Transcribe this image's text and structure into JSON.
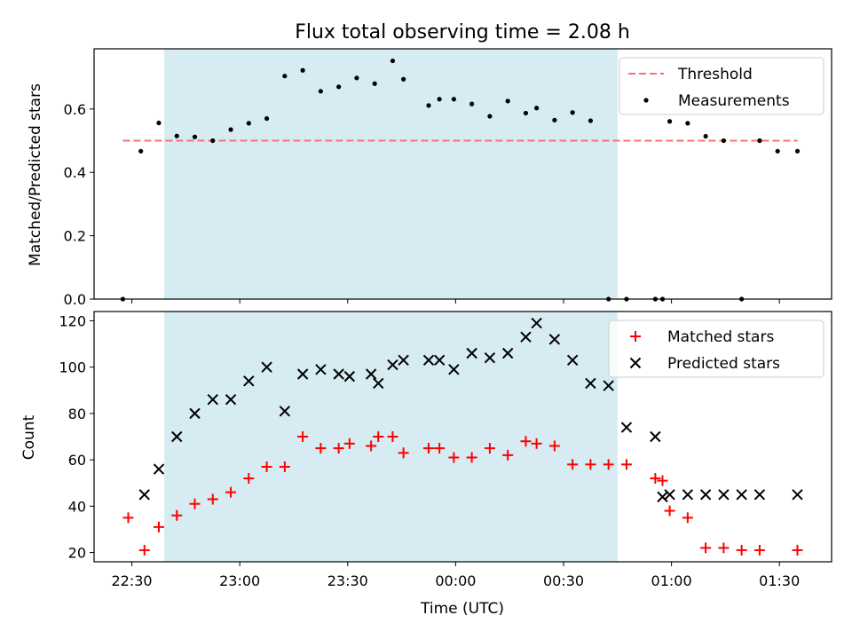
{
  "chart_data": {
    "type": "scatter",
    "title": "Flux total observing time = 2.08 h",
    "xlabel": "Time (UTC)",
    "x_tick_labels": [
      "22:30",
      "23:00",
      "23:30",
      "00:00",
      "00:30",
      "01:00",
      "01:30"
    ],
    "x_tick_minutes": [
      0,
      30,
      60,
      90,
      120,
      150,
      180
    ],
    "x_unit": "minutes after 22:30 UTC",
    "xlim": [
      -10.5,
      194.5
    ],
    "highlight_span": [
      9,
      135
    ],
    "colors": {
      "threshold": "#ff7070",
      "measurements": "#000000",
      "matched": "#ff0000",
      "predicted": "#000000",
      "span": "#add8e6"
    },
    "panels": [
      {
        "ylabel": "Matched/Predicted stars",
        "ylim": [
          0,
          0.79
        ],
        "y_ticks": [
          0,
          0.2,
          0.4,
          0.6
        ],
        "y_tick_labels": [
          "0.0",
          "0.2",
          "0.4",
          "0.6"
        ],
        "legend": "top-right",
        "series": [
          {
            "name": "Threshold",
            "kind": "dashed-line",
            "x": [
              -2.5,
              185
            ],
            "y": [
              0.5,
              0.5
            ]
          },
          {
            "name": "Measurements",
            "kind": "dot",
            "x": [
              -2.5,
              2.5,
              7.5,
              12.5,
              17.5,
              22.5,
              27.5,
              32.5,
              37.5,
              42.5,
              47.5,
              52.5,
              57.5,
              62.5,
              67.5,
              72.5,
              75.5,
              82.5,
              85.5,
              89.5,
              94.5,
              99.5,
              104.5,
              109.5,
              112.5,
              117.5,
              122.5,
              127.5,
              132.5,
              137.5,
              145.5,
              147.5,
              149.5,
              154.5,
              159.5,
              164.5,
              169.5,
              174.5,
              179.5,
              185
            ],
            "y": [
              0.0,
              0.467,
              0.556,
              0.515,
              0.512,
              0.5,
              0.535,
              0.555,
              0.57,
              0.704,
              0.722,
              0.656,
              0.67,
              0.698,
              0.68,
              0.752,
              0.694,
              0.611,
              0.631,
              0.631,
              0.616,
              0.577,
              0.625,
              0.587,
              0.603,
              0.565,
              0.589,
              0.563,
              0.0,
              0.0,
              0.0,
              0.0,
              0.561,
              0.555,
              0.514,
              0.5,
              0.0,
              0.5,
              0.467,
              0.467
            ]
          }
        ]
      },
      {
        "ylabel": "Count",
        "ylim": [
          16,
          124
        ],
        "y_ticks": [
          20,
          40,
          60,
          80,
          100,
          120
        ],
        "y_tick_labels": [
          "20",
          "40",
          "60",
          "80",
          "100",
          "120"
        ],
        "legend": "top-right",
        "series": [
          {
            "name": "Matched stars",
            "kind": "plus",
            "x": [
              -1,
              3.5,
              7.5,
              12.5,
              17.5,
              22.5,
              27.5,
              32.5,
              37.5,
              42.5,
              47.5,
              52.5,
              57.5,
              60.5,
              66.5,
              68.5,
              72.5,
              75.5,
              82.5,
              85.5,
              89.5,
              94.5,
              99.5,
              104.5,
              109.5,
              112.5,
              117.5,
              122.5,
              127.5,
              132.5,
              137.5,
              145.5,
              147.5,
              149.5,
              154.5,
              159.5,
              164.5,
              169.5,
              174.5,
              185
            ],
            "y": [
              35,
              21,
              31,
              36,
              41,
              43,
              46,
              52,
              57,
              57,
              70,
              65,
              65,
              67,
              66,
              70,
              70,
              63,
              65,
              65,
              61,
              61,
              65,
              62,
              68,
              67,
              66,
              58,
              58,
              58,
              58,
              52,
              51,
              38,
              35,
              22,
              22,
              21,
              21,
              21
            ]
          },
          {
            "name": "Predicted stars",
            "kind": "x",
            "x": [
              3.5,
              7.5,
              12.5,
              17.5,
              22.5,
              27.5,
              32.5,
              37.5,
              42.5,
              47.5,
              52.5,
              57.5,
              60.5,
              66.5,
              68.5,
              72.5,
              75.5,
              82.5,
              85.5,
              89.5,
              94.5,
              99.5,
              104.5,
              109.5,
              112.5,
              117.5,
              122.5,
              127.5,
              132.5,
              137.5,
              145.5,
              147.5,
              149.5,
              154.5,
              159.5,
              164.5,
              169.5,
              174.5,
              185
            ],
            "y": [
              45,
              56,
              70,
              80,
              86,
              86,
              94,
              100,
              81,
              97,
              99,
              97,
              96,
              97,
              93,
              101,
              103,
              103,
              103,
              99,
              106,
              104,
              106,
              113,
              119,
              112,
              103,
              93,
              92,
              74,
              70,
              44,
              45,
              45,
              45,
              45,
              45,
              45,
              45
            ]
          }
        ]
      }
    ]
  }
}
